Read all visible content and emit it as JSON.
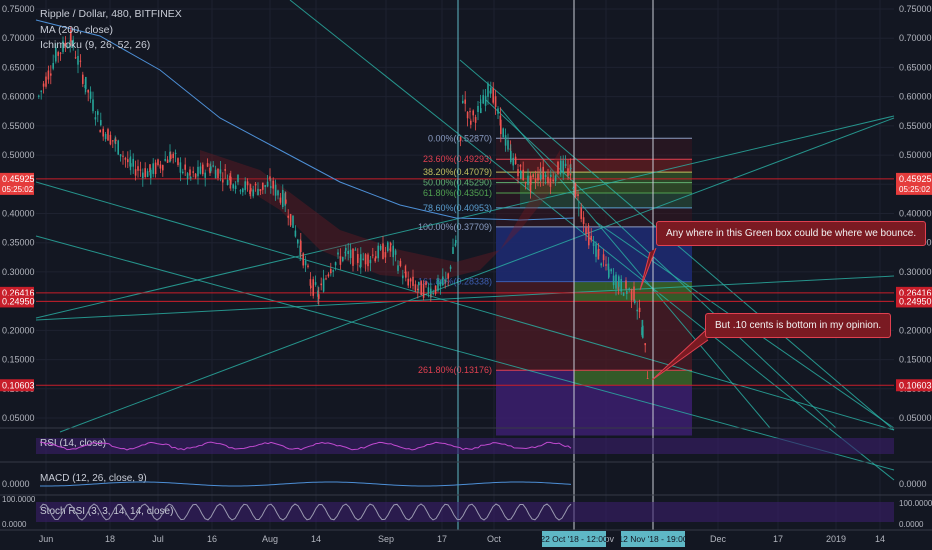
{
  "header": {
    "symbol": "Ripple / Dollar, 480, BITFINEX",
    "ma": "MA (200, close)",
    "ichimoku": "Ichimoku (9, 26, 52, 26)"
  },
  "notes": {
    "green_box": "Any where in this Green box could be where we bounce.",
    "bottom": "But .10 cents is bottom in my opinion."
  },
  "chart_data": {
    "type": "candlestick",
    "y_ticks": [
      "0.75000",
      "0.70000",
      "0.65000",
      "0.60000",
      "0.55000",
      "0.50000",
      "0.45000",
      "0.40000",
      "0.35000",
      "0.30000",
      "0.25000",
      "0.20000",
      "0.15000",
      "0.10000",
      "0.05000"
    ],
    "y_values": [
      0.75,
      0.7,
      0.65,
      0.6,
      0.55,
      0.5,
      0.45,
      0.4,
      0.35,
      0.3,
      0.25,
      0.2,
      0.15,
      0.1,
      0.05
    ],
    "ylim": [
      0.02,
      0.76
    ],
    "x_ticks": [
      "Jun",
      "18",
      "Jul",
      "16",
      "Aug",
      "14",
      "Sep",
      "17",
      "Oct",
      "Nov",
      "Dec",
      "17",
      "2019",
      "14"
    ],
    "price_labels": [
      {
        "text": "0.45925",
        "sub": "05:25:02",
        "value": 0.45925,
        "color": "#e53c3c"
      },
      {
        "text": "0.26416",
        "value": 0.26416,
        "color": "#c81e2a"
      },
      {
        "text": "0.24950",
        "value": 0.2495,
        "color": "#c81e2a"
      },
      {
        "text": "0.10603",
        "value": 0.10603,
        "color": "#c81e2a"
      }
    ],
    "horizontal_lines": [
      0.45925,
      0.26416,
      0.2495,
      0.10603
    ],
    "fib_levels": [
      {
        "label": "0.00%(0.52870)",
        "value": 0.5287,
        "color": "#8b9dc3"
      },
      {
        "label": "23.60%(0.49293)",
        "value": 0.49293,
        "color": "#e04050"
      },
      {
        "label": "38.20%(0.47079)",
        "value": 0.47079,
        "color": "#c0c060"
      },
      {
        "label": "50.00%(0.45290)",
        "value": 0.4529,
        "color": "#60b070"
      },
      {
        "label": "61.80%(0.43501)",
        "value": 0.43501,
        "color": "#50a050"
      },
      {
        "label": "78.60%(0.40953)",
        "value": 0.40953,
        "color": "#5a9ed0"
      },
      {
        "label": "100.00%(0.37709)",
        "value": 0.37709,
        "color": "#8b9dc3"
      },
      {
        "label": "161.80%(0.28338)",
        "value": 0.28338,
        "color": "#3d5db0"
      },
      {
        "label": "261.80%(0.13176)",
        "value": 0.13176,
        "color": "#e04050"
      }
    ],
    "indicators": {
      "rsi": "RSI (14, close)",
      "macd": "MACD (12, 26, close, 9)",
      "macd_value": "0.0000",
      "stoch": "Stoch RSI (3, 3, 14, 14, close)",
      "stoch_top": "100.0000",
      "stoch_bottom": "0.0000"
    },
    "time_labels": [
      "22 Oct '18 - 12:00",
      "12 Nov '18 - 19:00"
    ]
  },
  "colors": {
    "up": "#26a69a",
    "down": "#ef5350",
    "background": "#131722",
    "grid": "#1e2230"
  }
}
